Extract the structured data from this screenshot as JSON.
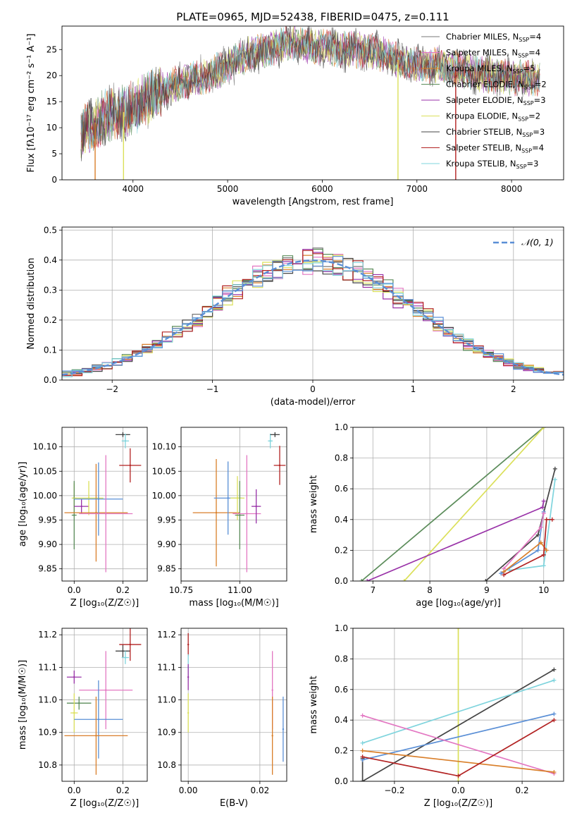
{
  "figure": {
    "title": "PLATE=0965, MJD=52438, FIBERID=0475, z=0.111"
  },
  "legend_main": [
    {
      "label": "Chabrier MILES, N",
      "sub": "SSP",
      "tail": "=4",
      "color": "#777777"
    },
    {
      "label": "Salpeter MILES, N",
      "sub": "SSP",
      "tail": "=4",
      "color": "#e377c2"
    },
    {
      "label": "Kroupa MILES, N",
      "sub": "SSP",
      "tail": "=5",
      "color": "#d97f2a"
    },
    {
      "label": "Chabrier ELODIE, N",
      "sub": "SSP",
      "tail": "=2",
      "color": "#5b8c5a"
    },
    {
      "label": "Salpeter ELODIE, N",
      "sub": "SSP",
      "tail": "=3",
      "color": "#9932a8"
    },
    {
      "label": "Kroupa ELODIE, N",
      "sub": "SSP",
      "tail": "=2",
      "color": "#dbe05a"
    },
    {
      "label": "Chabrier STELIB, N",
      "sub": "SSP",
      "tail": "=3",
      "color": "#444444"
    },
    {
      "label": "Salpeter STELIB, N",
      "sub": "SSP",
      "tail": "=4",
      "color": "#b22222"
    },
    {
      "label": "Kroupa STELIB, N",
      "sub": "SSP",
      "tail": "=3",
      "color": "#7fd4dd"
    }
  ],
  "legend_hist": {
    "label": "𝒩(0, 1)",
    "color": "#5a8fd6"
  },
  "chart_data": [
    {
      "id": "spectrum",
      "type": "line",
      "xlabel": "wavelength [Angstrom, rest frame]",
      "ylabel": "Flux [fλ10⁻¹⁷ erg cm⁻² s⁻¹ A⁻¹]",
      "xlim": [
        3250,
        8550
      ],
      "ylim": [
        0,
        29.5
      ],
      "xticks": [
        4000,
        5000,
        6000,
        7000,
        8000
      ],
      "yticks": [
        0,
        5,
        10,
        15,
        20,
        25
      ],
      "continuum": [
        [
          3450,
          9
        ],
        [
          3600,
          11
        ],
        [
          3800,
          13
        ],
        [
          3950,
          13
        ],
        [
          4100,
          15
        ],
        [
          4250,
          16.5
        ],
        [
          4400,
          18
        ],
        [
          4600,
          19
        ],
        [
          4800,
          20
        ],
        [
          5000,
          22
        ],
        [
          5200,
          24
        ],
        [
          5400,
          25
        ],
        [
          5600,
          26
        ],
        [
          5800,
          26
        ],
        [
          6000,
          25.5
        ],
        [
          6200,
          25
        ],
        [
          6400,
          25
        ],
        [
          6600,
          24.5
        ],
        [
          6800,
          23
        ],
        [
          7000,
          22
        ],
        [
          7200,
          22
        ],
        [
          7500,
          21
        ],
        [
          7800,
          20
        ],
        [
          8100,
          19.5
        ],
        [
          8300,
          19.5
        ]
      ],
      "spikes_down": [
        [
          3600,
          0
        ],
        [
          3900,
          0
        ],
        [
          6800,
          0
        ],
        [
          7410,
          0
        ]
      ]
    },
    {
      "id": "residual_hist",
      "type": "line",
      "xlabel": "(data-model)/error",
      "ylabel": "Normed distribution",
      "xlim": [
        -2.5,
        2.5
      ],
      "ylim": [
        0,
        0.51
      ],
      "xticks": [
        -2,
        -1,
        0,
        1,
        2
      ],
      "yticks": [
        0.0,
        0.1,
        0.2,
        0.3,
        0.4,
        0.5
      ],
      "bins": 50,
      "series_label": "𝒩(0, 1)"
    },
    {
      "id": "age_vs_Z",
      "type": "scatter",
      "xlabel": "Z [log₁₀(Z/Z☉)]",
      "ylabel": "age  [log₁₀(age/yr)]",
      "xlim": [
        -0.05,
        0.3
      ],
      "ylim": [
        9.825,
        10.14
      ],
      "xticks": [
        0.0,
        0.2
      ],
      "yticks": [
        9.85,
        9.9,
        9.95,
        10.0,
        10.05,
        10.1
      ],
      "points": [
        {
          "x": 0.0,
          "y": 9.995,
          "xerr": 0.01,
          "yerr": 0.03,
          "c": "#dbe05a"
        },
        {
          "x": 0.0,
          "y": 9.96,
          "xerr": 0.01,
          "yerr": 0.07,
          "c": "#5b8c5a"
        },
        {
          "x": 0.03,
          "y": 9.978,
          "xerr": 0.03,
          "yerr": 0.015,
          "c": "#9932a8"
        },
        {
          "x": 0.06,
          "y": 9.995,
          "xerr": 0.06,
          "yerr": 0.035,
          "c": "#dbe05a"
        },
        {
          "x": 0.09,
          "y": 9.965,
          "xerr": 0.13,
          "yerr": 0.1,
          "c": "#d97f2a"
        },
        {
          "x": 0.1,
          "y": 9.993,
          "xerr": 0.1,
          "yerr": 0.075,
          "c": "#5a8fd6"
        },
        {
          "x": 0.13,
          "y": 9.963,
          "xerr": 0.11,
          "yerr": 0.12,
          "c": "#e377c2"
        },
        {
          "x": 0.2,
          "y": 10.125,
          "xerr": 0.03,
          "yerr": 0.005,
          "c": "#444444"
        },
        {
          "x": 0.21,
          "y": 10.112,
          "xerr": 0.015,
          "yerr": 0.015,
          "c": "#7fd4dd"
        },
        {
          "x": 0.23,
          "y": 10.062,
          "xerr": 0.045,
          "yerr": 0.035,
          "c": "#b22222"
        }
      ]
    },
    {
      "id": "age_vs_mass",
      "type": "scatter",
      "xlabel": "mass [log₁₀(M/M☉)]",
      "xlim": [
        10.75,
        11.2
      ],
      "ylim": [
        9.825,
        10.14
      ],
      "xticks": [
        10.75,
        11.0
      ],
      "yticks": [
        9.85,
        9.9,
        9.95,
        10.0,
        10.05,
        10.1
      ],
      "points": [
        {
          "x": 10.9,
          "y": 9.965,
          "xerr": 0.1,
          "yerr": 0.11,
          "c": "#d97f2a"
        },
        {
          "x": 10.95,
          "y": 9.995,
          "xerr": 0.06,
          "yerr": 0.075,
          "c": "#5a8fd6"
        },
        {
          "x": 10.99,
          "y": 9.995,
          "xerr": 0.03,
          "yerr": 0.045,
          "c": "#dbe05a"
        },
        {
          "x": 11.0,
          "y": 9.96,
          "xerr": 0.02,
          "yerr": 0.07,
          "c": "#5b8c5a"
        },
        {
          "x": 11.03,
          "y": 9.963,
          "xerr": 0.06,
          "yerr": 0.12,
          "c": "#e377c2"
        },
        {
          "x": 11.07,
          "y": 9.978,
          "xerr": 0.02,
          "yerr": 0.035,
          "c": "#9932a8"
        },
        {
          "x": 11.13,
          "y": 10.112,
          "xerr": 0.01,
          "yerr": 0.015,
          "c": "#7fd4dd"
        },
        {
          "x": 11.15,
          "y": 10.125,
          "xerr": 0.02,
          "yerr": 0.005,
          "c": "#444444"
        },
        {
          "x": 11.17,
          "y": 10.062,
          "xerr": 0.025,
          "yerr": 0.04,
          "c": "#b22222"
        }
      ]
    },
    {
      "id": "weight_vs_age",
      "type": "line",
      "xlabel": "age  [log₁₀(age/yr)]",
      "ylabel": "mass weight",
      "xlim": [
        6.65,
        10.35
      ],
      "ylim": [
        0,
        1.0
      ],
      "xticks": [
        7,
        8,
        9,
        10
      ],
      "yticks": [
        0.0,
        0.2,
        0.4,
        0.6,
        0.8,
        1.0
      ],
      "series": [
        {
          "c": "#5b8c5a",
          "pts": [
            [
              6.8,
              0.0
            ],
            [
              10.0,
              1.0
            ]
          ]
        },
        {
          "c": "#dbe05a",
          "pts": [
            [
              7.55,
              0.0
            ],
            [
              10.0,
              1.0
            ]
          ]
        },
        {
          "c": "#9932a8",
          "pts": [
            [
              6.9,
              0.0
            ],
            [
              9.98,
              0.48
            ],
            [
              10.0,
              0.52
            ]
          ]
        },
        {
          "c": "#444444",
          "pts": [
            [
              8.98,
              0.0
            ],
            [
              9.9,
              0.3
            ],
            [
              10.2,
              0.73
            ]
          ]
        },
        {
          "c": "#7fd4dd",
          "pts": [
            [
              9.4,
              0.07
            ],
            [
              10.0,
              0.1
            ],
            [
              10.2,
              0.66
            ]
          ]
        },
        {
          "c": "#5a8fd6",
          "pts": [
            [
              9.25,
              0.05
            ],
            [
              9.9,
              0.2
            ],
            [
              10.0,
              0.45
            ]
          ]
        },
        {
          "c": "#e377c2",
          "pts": [
            [
              9.3,
              0.08
            ],
            [
              9.95,
              0.35
            ],
            [
              10.0,
              0.44
            ]
          ]
        },
        {
          "c": "#d97f2a",
          "pts": [
            [
              9.3,
              0.06
            ],
            [
              9.95,
              0.25
            ],
            [
              10.05,
              0.2
            ]
          ]
        },
        {
          "c": "#b22222",
          "pts": [
            [
              9.3,
              0.04
            ],
            [
              10.0,
              0.17
            ],
            [
              10.05,
              0.4
            ],
            [
              10.15,
              0.4
            ]
          ]
        }
      ]
    },
    {
      "id": "mass_vs_Z",
      "type": "scatter",
      "xlabel": "Z [log₁₀(Z/Z☉)]",
      "ylabel": "mass [log₁₀(M/M☉)]",
      "xlim": [
        -0.05,
        0.3
      ],
      "ylim": [
        10.75,
        11.22
      ],
      "xticks": [
        0.0,
        0.2
      ],
      "yticks": [
        10.8,
        10.9,
        11.0,
        11.1,
        11.2
      ],
      "points": [
        {
          "x": 0.0,
          "y": 11.07,
          "xerr": 0.03,
          "yerr": 0.02,
          "c": "#9932a8"
        },
        {
          "x": 0.02,
          "y": 10.99,
          "xerr": 0.05,
          "yerr": 0.02,
          "c": "#5b8c5a"
        },
        {
          "x": 0.0,
          "y": 10.96,
          "xerr": 0.015,
          "yerr": 0.06,
          "c": "#dbe05a"
        },
        {
          "x": 0.13,
          "y": 11.03,
          "xerr": 0.11,
          "yerr": 0.12,
          "c": "#e377c2"
        },
        {
          "x": 0.1,
          "y": 10.94,
          "xerr": 0.1,
          "yerr": 0.12,
          "c": "#5a8fd6"
        },
        {
          "x": 0.09,
          "y": 10.89,
          "xerr": 0.13,
          "yerr": 0.12,
          "c": "#d97f2a"
        },
        {
          "x": 0.2,
          "y": 11.15,
          "xerr": 0.03,
          "yerr": 0.02,
          "c": "#444444"
        },
        {
          "x": 0.21,
          "y": 11.13,
          "xerr": 0.015,
          "yerr": 0.02,
          "c": "#7fd4dd"
        },
        {
          "x": 0.23,
          "y": 11.17,
          "xerr": 0.045,
          "yerr": 0.05,
          "c": "#b22222"
        }
      ]
    },
    {
      "id": "mass_vs_ebv",
      "type": "scatter",
      "xlabel": "E(B-V)",
      "xlim": [
        -0.002,
        0.0275
      ],
      "ylim": [
        10.75,
        11.22
      ],
      "xticks": [
        0.0,
        0.02
      ],
      "yticks": [
        10.8,
        10.9,
        11.0,
        11.1,
        11.2
      ],
      "points": [
        {
          "x": 0.0,
          "y": 11.17,
          "xerr": 0,
          "yerr": 0.035,
          "c": "#b22222"
        },
        {
          "x": 0.0,
          "y": 11.1,
          "xerr": 0,
          "yerr": 0.04,
          "c": "#7fd4dd"
        },
        {
          "x": 0.0,
          "y": 11.07,
          "xerr": 0,
          "yerr": 0.04,
          "c": "#9932a8"
        },
        {
          "x": 0.0,
          "y": 10.96,
          "xerr": 0,
          "yerr": 0.06,
          "c": "#dbe05a"
        },
        {
          "x": 0.0235,
          "y": 11.03,
          "xerr": 0,
          "yerr": 0.12,
          "c": "#e377c2"
        },
        {
          "x": 0.0235,
          "y": 10.89,
          "xerr": 0,
          "yerr": 0.12,
          "c": "#d97f2a"
        },
        {
          "x": 0.0265,
          "y": 10.91,
          "xerr": 0,
          "yerr": 0.1,
          "c": "#5a8fd6"
        }
      ]
    },
    {
      "id": "weight_vs_Z",
      "type": "line",
      "xlabel": "Z [log₁₀(Z/Z☉)]",
      "ylabel": "mass weight",
      "xlim": [
        -0.33,
        0.33
      ],
      "ylim": [
        0,
        1.0
      ],
      "xticks": [
        -0.2,
        0.0,
        0.2
      ],
      "yticks": [
        0.0,
        0.2,
        0.4,
        0.6,
        0.8,
        1.0
      ],
      "series": [
        {
          "c": "#dbe05a",
          "pts": [
            [
              0.0,
              0.0
            ],
            [
              0.0,
              1.0
            ]
          ]
        },
        {
          "c": "#444444",
          "pts": [
            [
              -0.3,
              0.0
            ],
            [
              -0.3,
              0.15
            ],
            [
              -0.3,
              0.0
            ],
            [
              0.3,
              0.73
            ]
          ]
        },
        {
          "c": "#7fd4dd",
          "pts": [
            [
              -0.3,
              0.25
            ],
            [
              0.3,
              0.66
            ]
          ]
        },
        {
          "c": "#5a8fd6",
          "pts": [
            [
              -0.3,
              0.14
            ],
            [
              0.3,
              0.44
            ]
          ]
        },
        {
          "c": "#e377c2",
          "pts": [
            [
              -0.3,
              0.43
            ],
            [
              0.3,
              0.05
            ]
          ]
        },
        {
          "c": "#d97f2a",
          "pts": [
            [
              -0.3,
              0.2
            ],
            [
              0.3,
              0.06
            ]
          ]
        },
        {
          "c": "#b22222",
          "pts": [
            [
              -0.3,
              0.16
            ],
            [
              0.0,
              0.035
            ],
            [
              0.3,
              0.4
            ]
          ]
        }
      ]
    }
  ]
}
